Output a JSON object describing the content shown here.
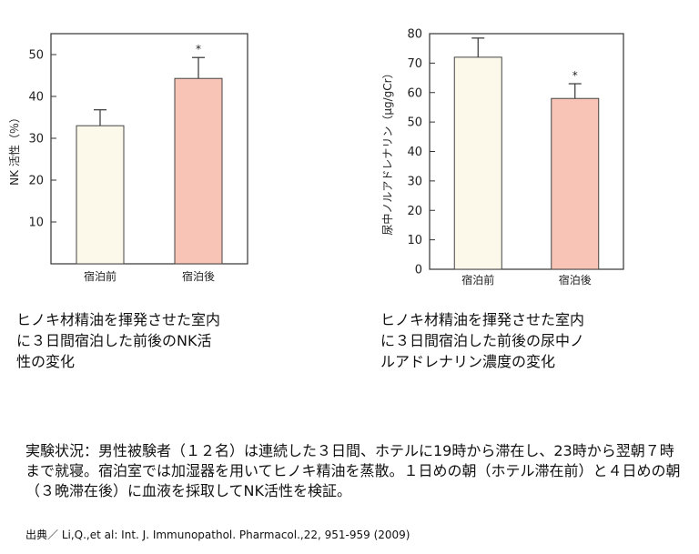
{
  "chart_data": [
    {
      "type": "bar",
      "categories": [
        "宿泊前",
        "宿泊後"
      ],
      "values": [
        33,
        44.3
      ],
      "errors": [
        3.8,
        5
      ],
      "significance": [
        "",
        "*"
      ],
      "ylabel": "NK 活性（％）",
      "ylim": [
        0,
        55
      ],
      "yticks": [
        10,
        20,
        30,
        40,
        50
      ],
      "colors": [
        "#fdf9ea",
        "#f7c4b6"
      ]
    },
    {
      "type": "bar",
      "categories": [
        "宿泊前",
        "宿泊後"
      ],
      "values": [
        72,
        58
      ],
      "errors": [
        6.5,
        5
      ],
      "significance": [
        "",
        "*"
      ],
      "ylabel": "尿中ノルアドレナリン（μg/gCr）",
      "ylim": [
        0,
        80
      ],
      "yticks": [
        0,
        10,
        20,
        30,
        40,
        50,
        60,
        70,
        80
      ],
      "colors": [
        "#fdf9ea",
        "#f7c4b6"
      ]
    }
  ],
  "captions": {
    "left": "ヒノキ材精油を揮発させた室内\nに３日間宿泊した前後のNK活\n性の変化",
    "right": "ヒノキ材精油を揮発させた室内\nに３日間宿泊した前後の尿中ノ\nルアドレナリン濃度の変化"
  },
  "description": "実験状況：男性被験者（１２名）は連続した３日間、ホテルに19時から滞在し、23時から翌朝７時まで就寝。宿泊室では加湿器を用いてヒノキ精油を蒸散。１日めの朝（ホテル滞在前）と４日めの朝（３晩滞在後）に血液を採取してNK活性を検証。",
  "citation": "出典／ Li,Q.,et al: Int. J. Immunopathol. Pharmacol.,22, 951-959 (2009)"
}
